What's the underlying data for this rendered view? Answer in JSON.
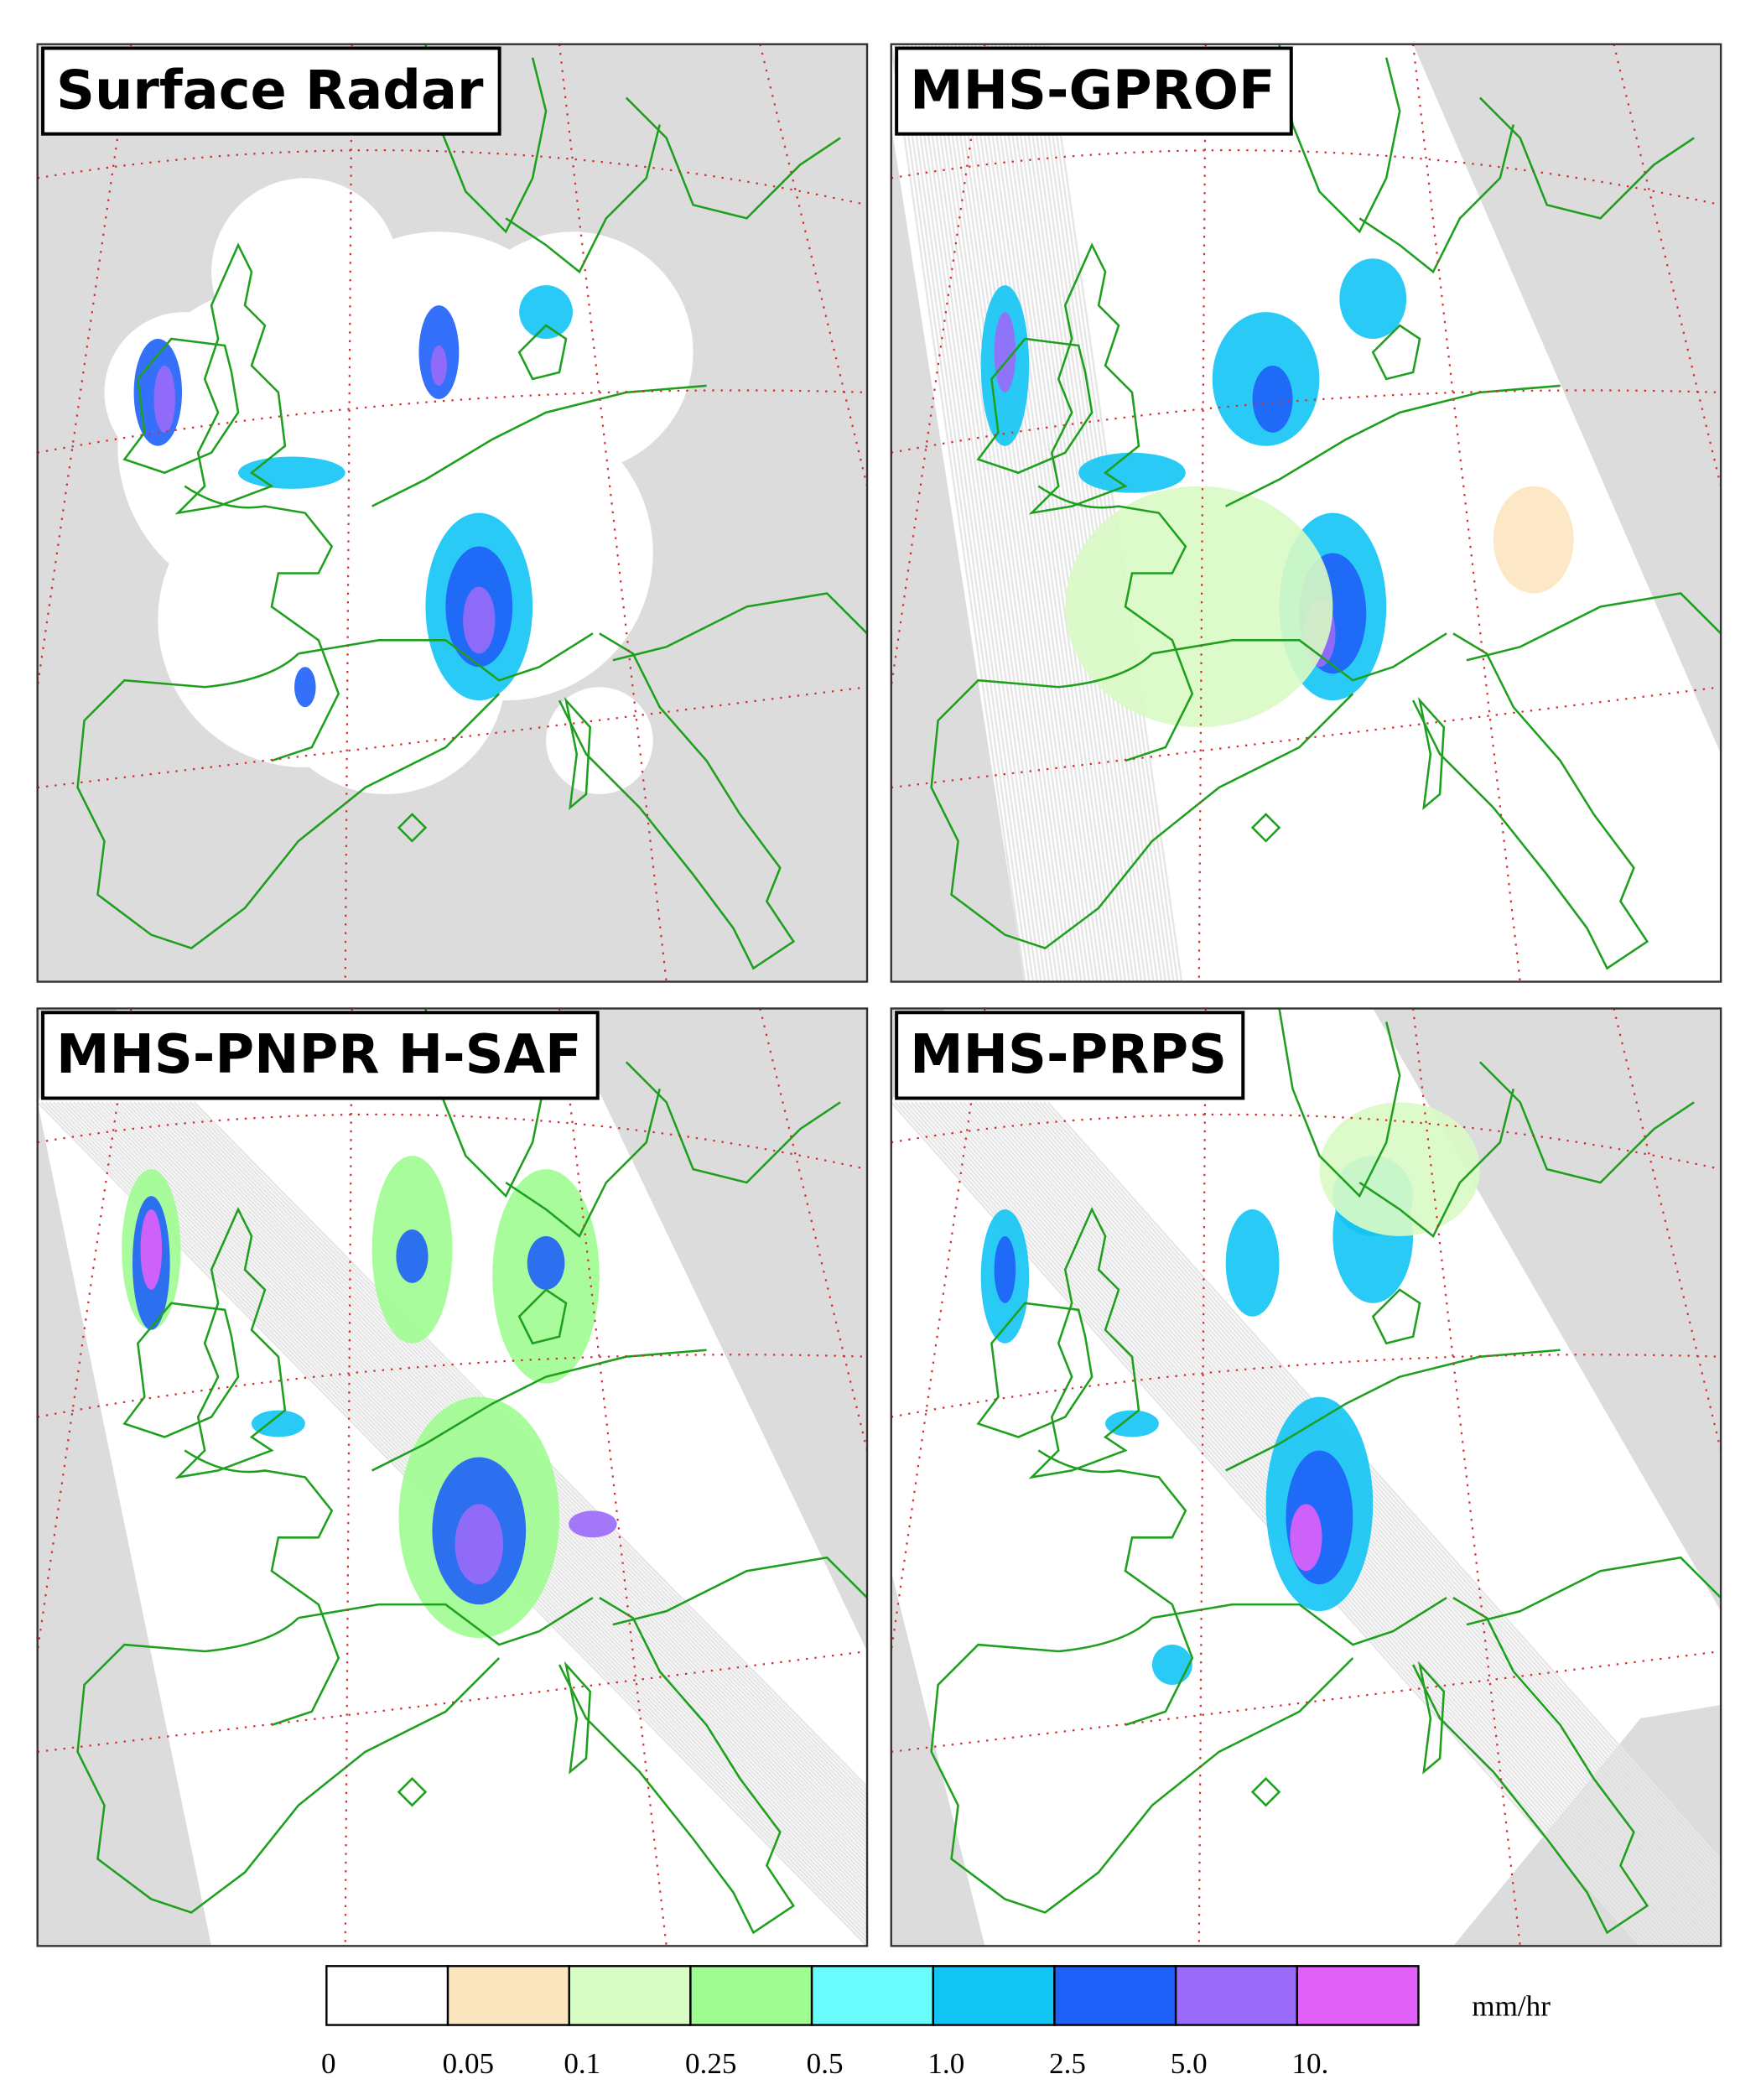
{
  "panels": [
    {
      "title": "Surface Radar"
    },
    {
      "title": "MHS-GPROF"
    },
    {
      "title": "MHS-PNPR H-SAF"
    },
    {
      "title": "MHS-PRPS"
    }
  ],
  "colorbar": {
    "colors": [
      "#ffffff",
      "#fce6c0",
      "#d9fbc4",
      "#9efc90",
      "#6afcfc",
      "#12c4f4",
      "#1e60f8",
      "#9a6af8",
      "#e060f8"
    ],
    "ticks": [
      "0",
      "0.05",
      "0.1",
      "0.25",
      "0.5",
      "1.0",
      "2.5",
      "5.0",
      "10."
    ],
    "unit": "mm/hr"
  }
}
